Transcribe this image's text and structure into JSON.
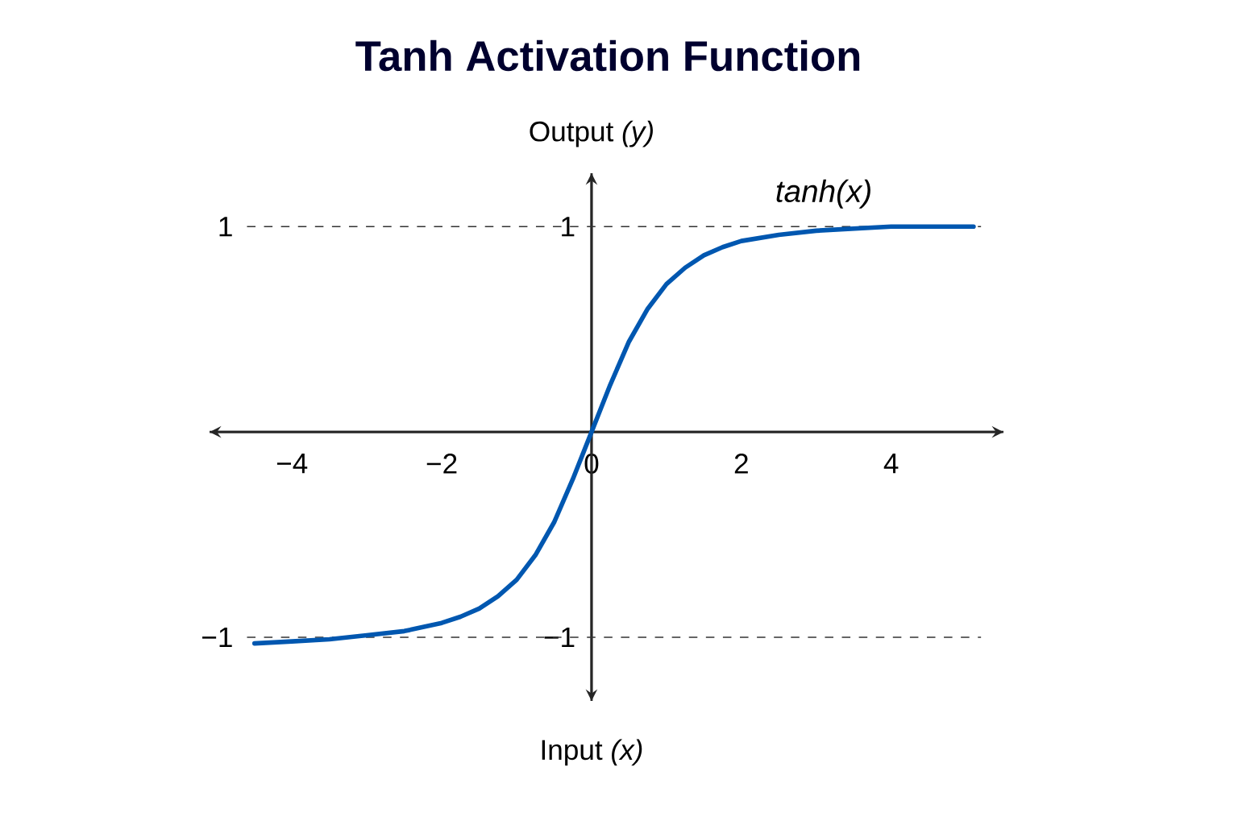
{
  "chart_data": {
    "type": "line",
    "title": "Tanh Activation Function",
    "xlabel": "Input *(x)*",
    "ylabel": "Output *(y)*",
    "x": [
      -4.5,
      -4,
      -3.5,
      -3,
      -2.5,
      -2,
      -1.75,
      -1.5,
      -1.25,
      -1,
      -0.75,
      -0.5,
      -0.25,
      0,
      0.25,
      0.5,
      0.75,
      1,
      1.25,
      1.5,
      1.75,
      2,
      2.5,
      3,
      3.5,
      4,
      4.5,
      5.1
    ],
    "series": [
      {
        "name": "tanh(x)",
        "color": "#0057b0",
        "values": [
          -1.03,
          -1.02,
          -1.01,
          -0.99,
          -0.97,
          -0.93,
          -0.9,
          -0.86,
          -0.8,
          -0.72,
          -0.6,
          -0.44,
          -0.23,
          0,
          0.23,
          0.44,
          0.6,
          0.72,
          0.8,
          0.86,
          0.9,
          0.93,
          0.96,
          0.98,
          0.99,
          1.0,
          1.0,
          1.0
        ]
      }
    ],
    "xlim": [
      -5.1,
      5.5
    ],
    "ylim": [
      -1.31,
      1.26
    ],
    "xticks": [
      {
        "value": -4,
        "label": "−4"
      },
      {
        "value": -2,
        "label": "−2"
      },
      0,
      2,
      4
    ],
    "yticks": [
      {
        "value": -1,
        "label": "−1"
      },
      1
    ],
    "ref_lines": [
      {
        "axis": "y",
        "value": 1,
        "label": "1",
        "line_style": "dashed"
      },
      {
        "axis": "y",
        "value": -1,
        "label": "−1",
        "line_style": "dashed"
      }
    ],
    "marker": "none",
    "line_style": "solid",
    "grid": false
  }
}
